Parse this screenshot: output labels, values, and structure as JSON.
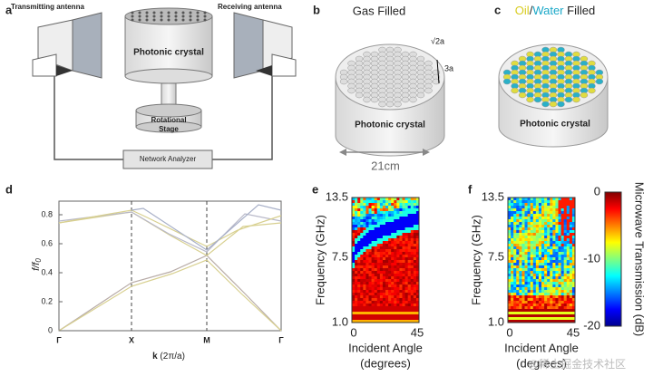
{
  "panels": {
    "a": {
      "label": "a",
      "transmitting": "Transmitting antenna",
      "receiving": "Receiving antenna",
      "crystal": "Photonic crystal",
      "stage": [
        "Rotational",
        "Stage"
      ],
      "analyzer": "Network Analyzer"
    },
    "b": {
      "label": "b",
      "title": "Gas Filled",
      "spacing": "√2a",
      "height": "3a",
      "crystal": "Photonic crystal",
      "size": "21cm"
    },
    "c": {
      "label": "c",
      "title_parts": [
        "Oil",
        "/",
        "Water",
        " Filled"
      ],
      "crystal": "Photonic crystal"
    },
    "d": {
      "label": "d",
      "y_label": [
        "f/f",
        "0"
      ],
      "yticks": [
        "0",
        "0.2",
        "0.4",
        "0.6",
        "0.8"
      ],
      "xticks": [
        "Γ",
        "X",
        "M",
        "Γ"
      ],
      "x_label": [
        "k",
        " (2π/a)"
      ]
    },
    "e": {
      "label": "e",
      "y_label": "Frequency (GHz)",
      "yticks": [
        "13.5",
        "7.5",
        "1.0"
      ],
      "xticks": [
        "0",
        "45"
      ],
      "x_label": [
        "Incident Angle",
        "(degrees)"
      ]
    },
    "f": {
      "label": "f",
      "y_label": "Frequency (GHz)",
      "yticks": [
        "13.5",
        "7.5",
        "1.0"
      ],
      "xticks": [
        "0",
        "45"
      ],
      "x_label": [
        "Incident Angle",
        "(degrees)"
      ]
    },
    "colorbar": {
      "label": "Microwave Transmission (dB)",
      "ticks": [
        "0",
        "-10",
        "-20"
      ]
    }
  },
  "watermark": "@稀土掘金技术社区"
}
